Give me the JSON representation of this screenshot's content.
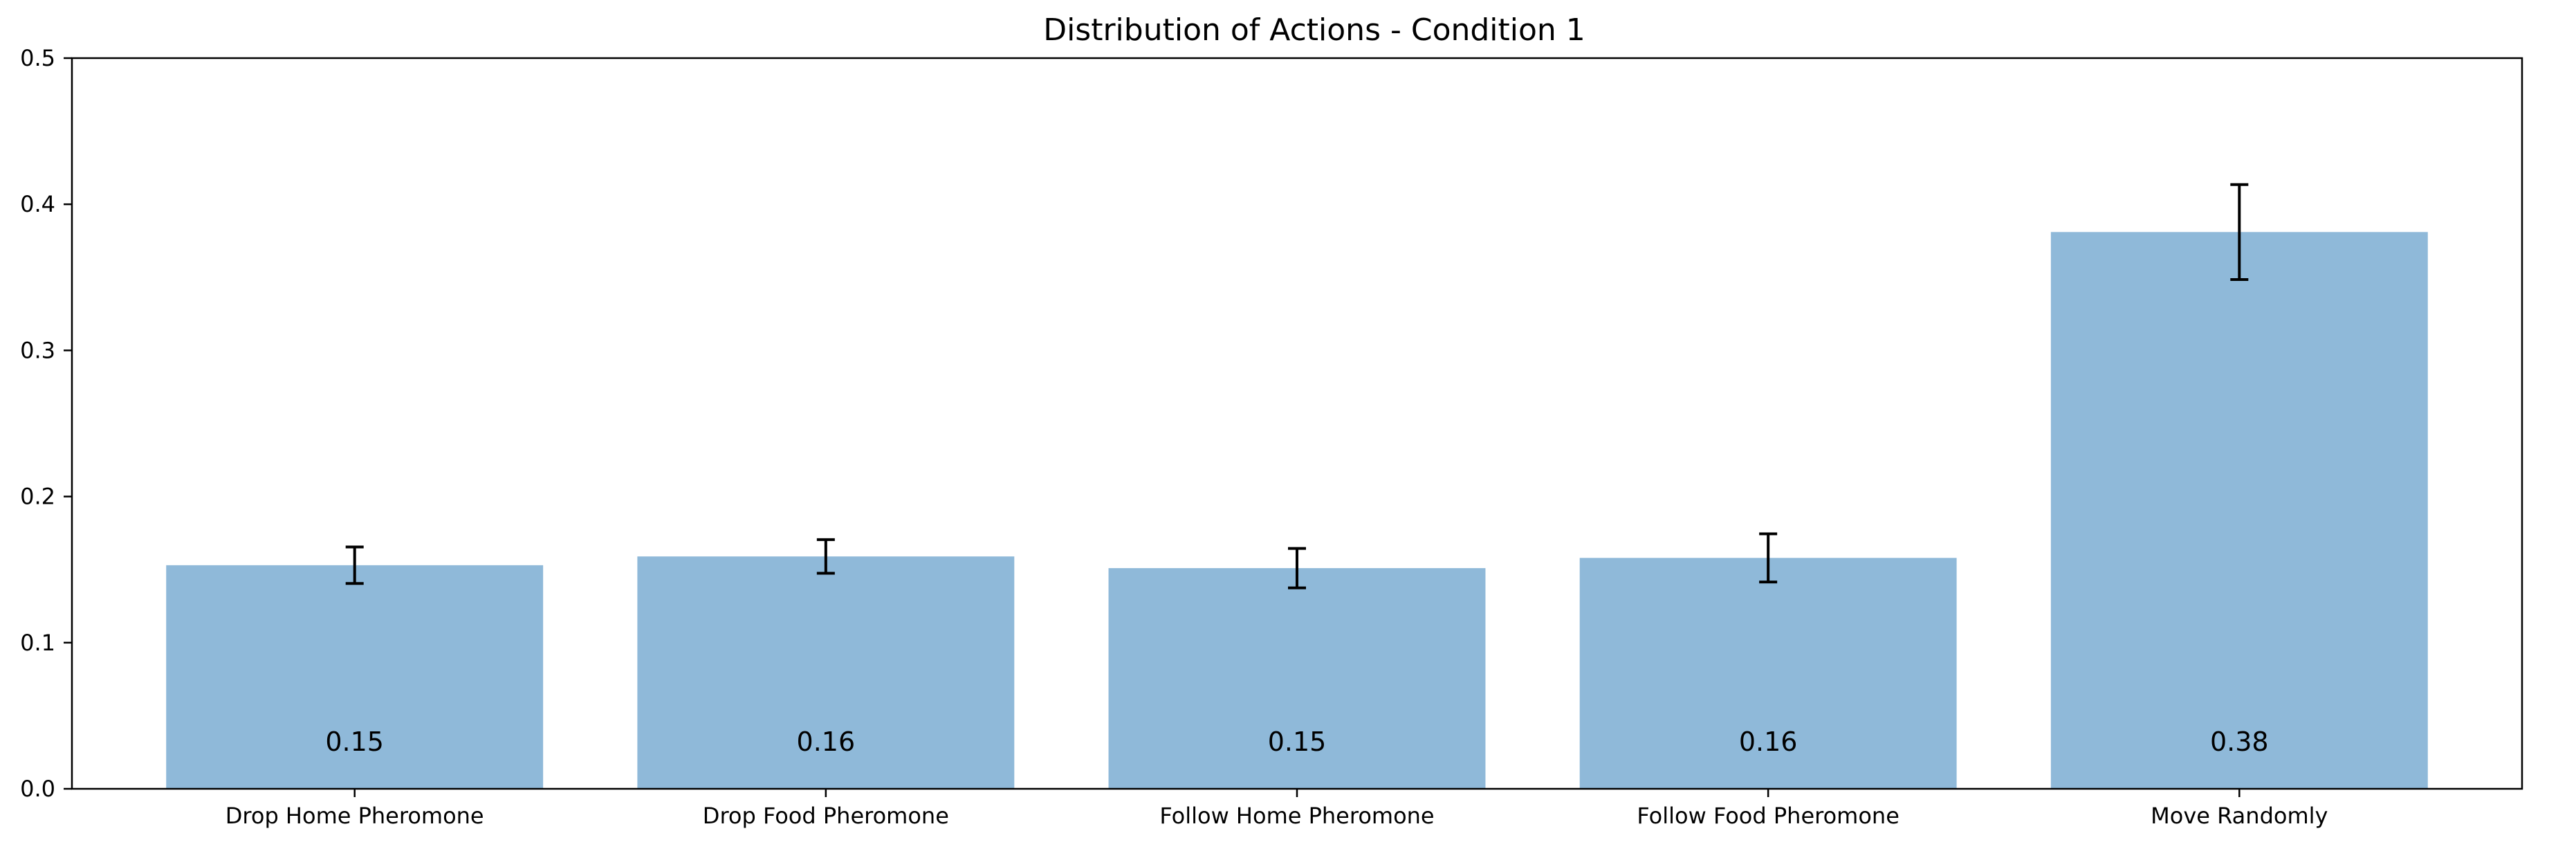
{
  "chart_data": {
    "type": "bar",
    "title": "Distribution of Actions - Condition 1",
    "xlabel": "",
    "ylabel": "",
    "categories": [
      "Drop Home Pheromone",
      "Drop Food Pheromone",
      "Follow Home Pheromone",
      "Follow Food Pheromone",
      "Move Randomly"
    ],
    "values": [
      0.153,
      0.159,
      0.151,
      0.158,
      0.381
    ],
    "errors": [
      0.0125,
      0.0115,
      0.0135,
      0.0165,
      0.0325
    ],
    "bar_labels": [
      "0.15",
      "0.16",
      "0.15",
      "0.16",
      "0.38"
    ],
    "ylim": [
      0,
      0.5
    ],
    "yticks": [
      0.0,
      0.1,
      0.2,
      0.3,
      0.4,
      0.5
    ],
    "ytick_labels": [
      "0.0",
      "0.1",
      "0.2",
      "0.3",
      "0.4",
      "0.5"
    ],
    "grid": false,
    "colors": {
      "bar": "#8fb9d9",
      "error_bar": "#000000",
      "axes": "#000000"
    }
  }
}
